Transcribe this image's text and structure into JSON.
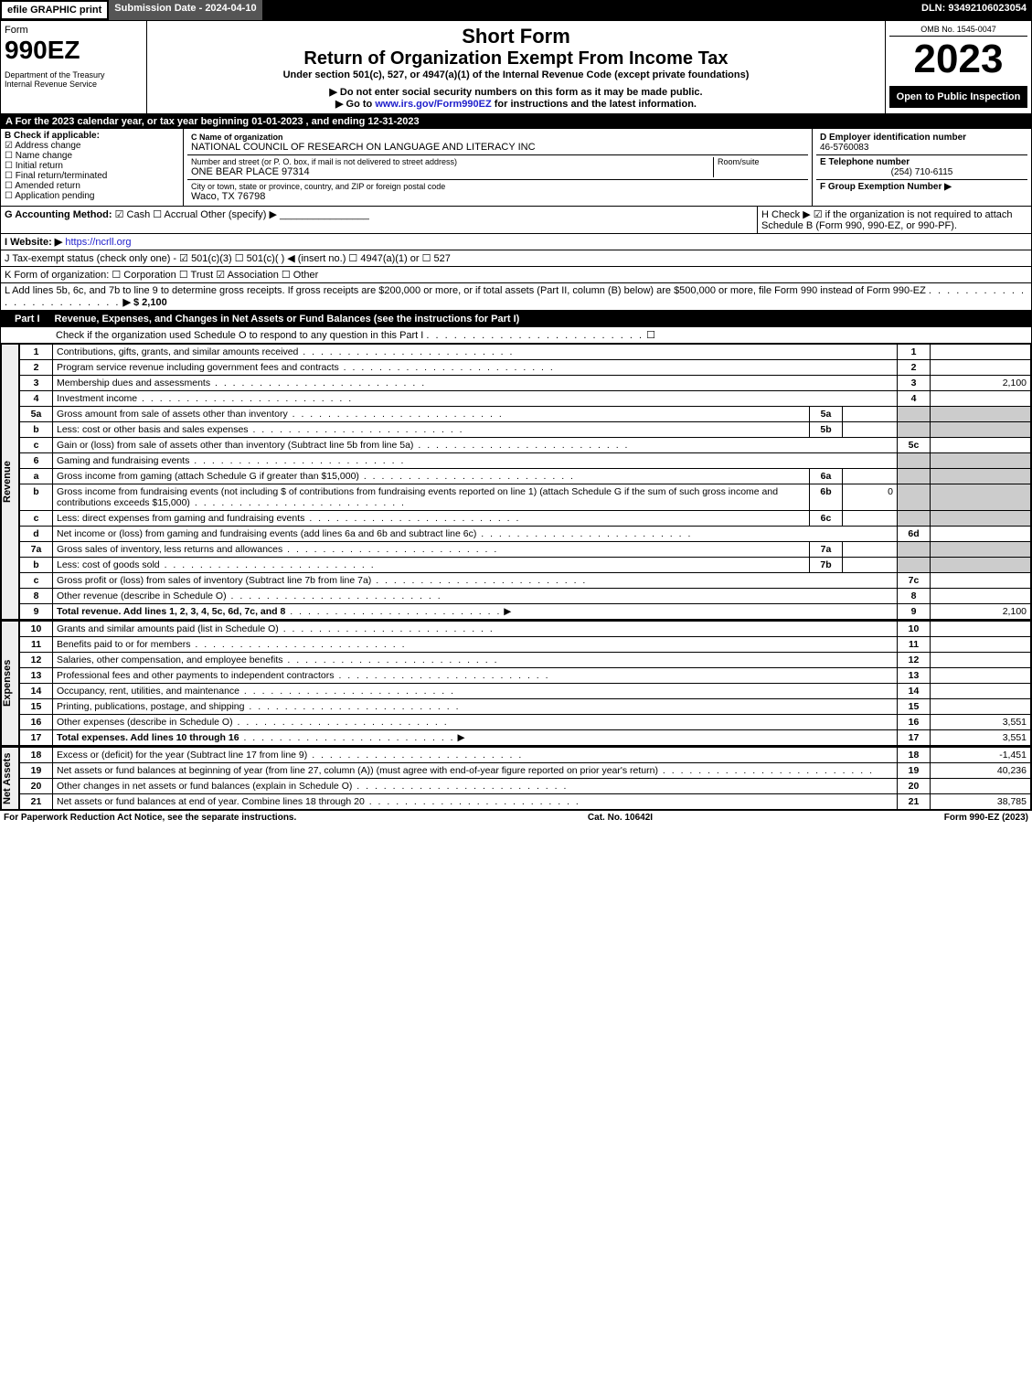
{
  "topbar": {
    "efile": "efile GRAPHIC print",
    "submission": "Submission Date - 2024-04-10",
    "dln": "DLN: 93492106023054"
  },
  "header": {
    "form_word": "Form",
    "form_no": "990EZ",
    "dept": "Department of the Treasury",
    "irs": "Internal Revenue Service",
    "short": "Short Form",
    "title": "Return of Organization Exempt From Income Tax",
    "subtitle": "Under section 501(c), 527, or 4947(a)(1) of the Internal Revenue Code (except private foundations)",
    "warn": "▶ Do not enter social security numbers on this form as it may be made public.",
    "goto": "▶ Go to www.irs.gov/Form990EZ for instructions and the latest information.",
    "omb": "OMB No. 1545-0047",
    "year": "2023",
    "open": "Open to Public Inspection"
  },
  "sectionA": "A  For the 2023 calendar year, or tax year beginning 01-01-2023 , and ending 12-31-2023",
  "B": {
    "label": "B  Check if applicable:",
    "items": [
      "Address change",
      "Name change",
      "Initial return",
      "Final return/terminated",
      "Amended return",
      "Application pending"
    ],
    "checked_idx": 0
  },
  "C": {
    "name_label": "C Name of organization",
    "name": "NATIONAL COUNCIL OF RESEARCH ON LANGUAGE AND LITERACY INC",
    "street_label": "Number and street (or P. O. box, if mail is not delivered to street address)",
    "room_label": "Room/suite",
    "street": "ONE BEAR PLACE 97314",
    "city_label": "City or town, state or province, country, and ZIP or foreign postal code",
    "city": "Waco, TX  76798"
  },
  "D": {
    "label": "D Employer identification number",
    "val": "46-5760083"
  },
  "E": {
    "label": "E Telephone number",
    "val": "(254) 710-6115"
  },
  "F": {
    "label": "F Group Exemption Number  ▶",
    "val": ""
  },
  "G": {
    "label": "G Accounting Method:",
    "opts": "☑ Cash   ☐ Accrual   Other (specify) ▶",
    "line": "________________"
  },
  "H": {
    "text": "H   Check ▶ ☑ if the organization is not required to attach Schedule B (Form 990, 990-EZ, or 990-PF)."
  },
  "I": {
    "label": "I Website: ▶",
    "val": "https://ncrll.org"
  },
  "J": {
    "text": "J Tax-exempt status (check only one) - ☑ 501(c)(3)  ☐ 501(c)(  ) ◀ (insert no.)  ☐ 4947(a)(1) or  ☐ 527"
  },
  "K": {
    "text": "K Form of organization:   ☐ Corporation   ☐ Trust   ☑ Association   ☐ Other"
  },
  "L": {
    "text": "L Add lines 5b, 6c, and 7b to line 9 to determine gross receipts. If gross receipts are $200,000 or more, or if total assets (Part II, column (B) below) are $500,000 or more, file Form 990 instead of Form 990-EZ",
    "amt": "▶ $ 2,100"
  },
  "part1": {
    "label": "Part I",
    "title": "Revenue, Expenses, and Changes in Net Assets or Fund Balances (see the instructions for Part I)",
    "check": "Check if the organization used Schedule O to respond to any question in this Part I",
    "check_val": "☐"
  },
  "revenue_rows": [
    {
      "n": "1",
      "t": "Contributions, gifts, grants, and similar amounts received",
      "r": "1",
      "a": ""
    },
    {
      "n": "2",
      "t": "Program service revenue including government fees and contracts",
      "r": "2",
      "a": ""
    },
    {
      "n": "3",
      "t": "Membership dues and assessments",
      "r": "3",
      "a": "2,100"
    },
    {
      "n": "4",
      "t": "Investment income",
      "r": "4",
      "a": ""
    },
    {
      "n": "5a",
      "t": "Gross amount from sale of assets other than inventory",
      "mid": "5a",
      "midv": "",
      "shade": true
    },
    {
      "n": "b",
      "t": "Less: cost or other basis and sales expenses",
      "mid": "5b",
      "midv": "",
      "shade": true
    },
    {
      "n": "c",
      "t": "Gain or (loss) from sale of assets other than inventory (Subtract line 5b from line 5a)",
      "r": "5c",
      "a": ""
    },
    {
      "n": "6",
      "t": "Gaming and fundraising events",
      "shade": true,
      "noamt": true
    },
    {
      "n": "a",
      "t": "Gross income from gaming (attach Schedule G if greater than $15,000)",
      "mid": "6a",
      "midv": "",
      "shade": true
    },
    {
      "n": "b",
      "t": "Gross income from fundraising events (not including $                  of contributions from fundraising events reported on line 1) (attach Schedule G if the sum of such gross income and contributions exceeds $15,000)",
      "mid": "6b",
      "midv": "0",
      "shade": true
    },
    {
      "n": "c",
      "t": "Less: direct expenses from gaming and fundraising events",
      "mid": "6c",
      "midv": "",
      "shade": true
    },
    {
      "n": "d",
      "t": "Net income or (loss) from gaming and fundraising events (add lines 6a and 6b and subtract line 6c)",
      "r": "6d",
      "a": ""
    },
    {
      "n": "7a",
      "t": "Gross sales of inventory, less returns and allowances",
      "mid": "7a",
      "midv": "",
      "shade": true
    },
    {
      "n": "b",
      "t": "Less: cost of goods sold",
      "mid": "7b",
      "midv": "",
      "shade": true
    },
    {
      "n": "c",
      "t": "Gross profit or (loss) from sales of inventory (Subtract line 7b from line 7a)",
      "r": "7c",
      "a": ""
    },
    {
      "n": "8",
      "t": "Other revenue (describe in Schedule O)",
      "r": "8",
      "a": ""
    },
    {
      "n": "9",
      "t": "Total revenue. Add lines 1, 2, 3, 4, 5c, 6d, 7c, and 8",
      "r": "9",
      "a": "2,100",
      "bold": true,
      "arrow": true
    }
  ],
  "expense_rows": [
    {
      "n": "10",
      "t": "Grants and similar amounts paid (list in Schedule O)",
      "r": "10",
      "a": ""
    },
    {
      "n": "11",
      "t": "Benefits paid to or for members",
      "r": "11",
      "a": ""
    },
    {
      "n": "12",
      "t": "Salaries, other compensation, and employee benefits",
      "r": "12",
      "a": ""
    },
    {
      "n": "13",
      "t": "Professional fees and other payments to independent contractors",
      "r": "13",
      "a": ""
    },
    {
      "n": "14",
      "t": "Occupancy, rent, utilities, and maintenance",
      "r": "14",
      "a": ""
    },
    {
      "n": "15",
      "t": "Printing, publications, postage, and shipping",
      "r": "15",
      "a": ""
    },
    {
      "n": "16",
      "t": "Other expenses (describe in Schedule O)",
      "r": "16",
      "a": "3,551"
    },
    {
      "n": "17",
      "t": "Total expenses. Add lines 10 through 16",
      "r": "17",
      "a": "3,551",
      "bold": true,
      "arrow": true
    }
  ],
  "netasset_rows": [
    {
      "n": "18",
      "t": "Excess or (deficit) for the year (Subtract line 17 from line 9)",
      "r": "18",
      "a": "-1,451"
    },
    {
      "n": "19",
      "t": "Net assets or fund balances at beginning of year (from line 27, column (A)) (must agree with end-of-year figure reported on prior year's return)",
      "r": "19",
      "a": "40,236"
    },
    {
      "n": "20",
      "t": "Other changes in net assets or fund balances (explain in Schedule O)",
      "r": "20",
      "a": ""
    },
    {
      "n": "21",
      "t": "Net assets or fund balances at end of year. Combine lines 18 through 20",
      "r": "21",
      "a": "38,785"
    }
  ],
  "vlabels": {
    "rev": "Revenue",
    "exp": "Expenses",
    "net": "Net Assets"
  },
  "footer": {
    "left": "For Paperwork Reduction Act Notice, see the separate instructions.",
    "mid": "Cat. No. 10642I",
    "right": "Form 990-EZ (2023)"
  }
}
